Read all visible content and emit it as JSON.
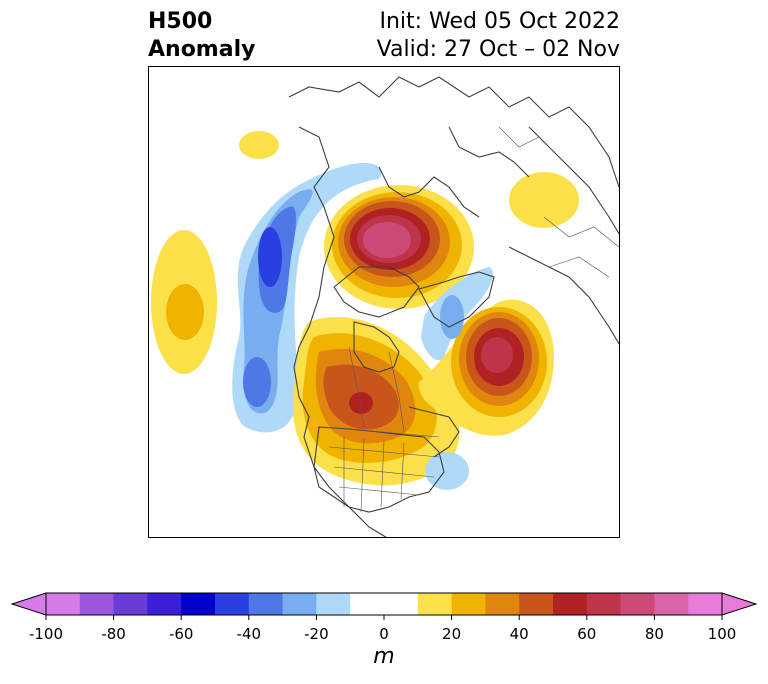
{
  "header": {
    "title_line1": "H500",
    "title_line2": "Anomaly",
    "init_text": "Init: Wed 05 Oct 2022",
    "valid_text": "Valid: 27 Oct – 02 Nov"
  },
  "map": {
    "projection": "north-polar-stereographic",
    "field": "500 hPa geopotential height anomaly",
    "features": [
      {
        "label": "positive-anomaly-arctic-greenland",
        "sign": "positive",
        "peak_m": 80
      },
      {
        "label": "positive-anomaly-central-canada",
        "sign": "positive",
        "peak_m": 50
      },
      {
        "label": "positive-anomaly-north-atlantic",
        "sign": "positive",
        "peak_m": 60
      },
      {
        "label": "positive-anomaly-north-pacific",
        "sign": "positive",
        "peak_m": 20
      },
      {
        "label": "positive-anomaly-east-asia",
        "sign": "positive",
        "peak_m": 10
      },
      {
        "label": "negative-anomaly-alaska-gulf",
        "sign": "negative",
        "peak_m": -60
      },
      {
        "label": "negative-anomaly-east-pacific",
        "sign": "negative",
        "peak_m": -40
      },
      {
        "label": "negative-anomaly-northwest-atlantic",
        "sign": "negative",
        "peak_m": -20
      },
      {
        "label": "negative-anomaly-western-atlantic",
        "sign": "negative",
        "peak_m": -10
      }
    ]
  },
  "colorbar": {
    "unit": "m",
    "ticks": [
      "-100",
      "-80",
      "-60",
      "-40",
      "-20",
      "0",
      "20",
      "40",
      "60",
      "80",
      "100"
    ],
    "levels": [
      -100,
      -90,
      -80,
      -70,
      -60,
      -50,
      -40,
      -30,
      -20,
      -10,
      10,
      20,
      30,
      40,
      50,
      60,
      70,
      80,
      90,
      100
    ],
    "colors": [
      "#d67be8",
      "#9d55e0",
      "#6a3cd6",
      "#3a1fd6",
      "#0000cc",
      "#2b3fe0",
      "#4f78e6",
      "#78adf0",
      "#aed9f8",
      "#ffffff",
      "#fce04a",
      "#f0b400",
      "#e0860f",
      "#c8561a",
      "#b02222",
      "#c0344a",
      "#cc4a78",
      "#d965a8",
      "#e87bd8"
    ],
    "extend_min_color": "#d67be8",
    "extend_max_color": "#e87bd8"
  }
}
